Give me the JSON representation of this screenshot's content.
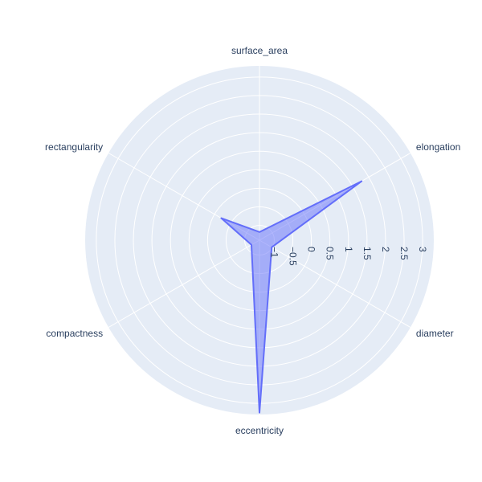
{
  "chart_data": {
    "type": "radar",
    "title": "",
    "categories": [
      "surface_area",
      "elongation",
      "diameter",
      "eccentricity",
      "compactness",
      "rectangularity"
    ],
    "series": [
      {
        "values": [
          -1.18,
          1.78,
          -1.02,
          3.25,
          -1.15,
          -0.21
        ]
      }
    ],
    "radial_range": [
      -1.4,
      3.3
    ],
    "radial_ticks": [
      -1,
      -0.5,
      0,
      0.5,
      1,
      1.5,
      2,
      2.5,
      3
    ],
    "radial_tick_labels": [
      "−1",
      "−0.5",
      "0",
      "0.5",
      "1",
      "1.5",
      "2",
      "2.5",
      "3"
    ],
    "grid": true,
    "legend": "none"
  },
  "colors": {
    "polar_bg": "#e5ecf6",
    "grid": "#ffffff",
    "series_line": "#636efa",
    "series_fill": "#636efa"
  }
}
